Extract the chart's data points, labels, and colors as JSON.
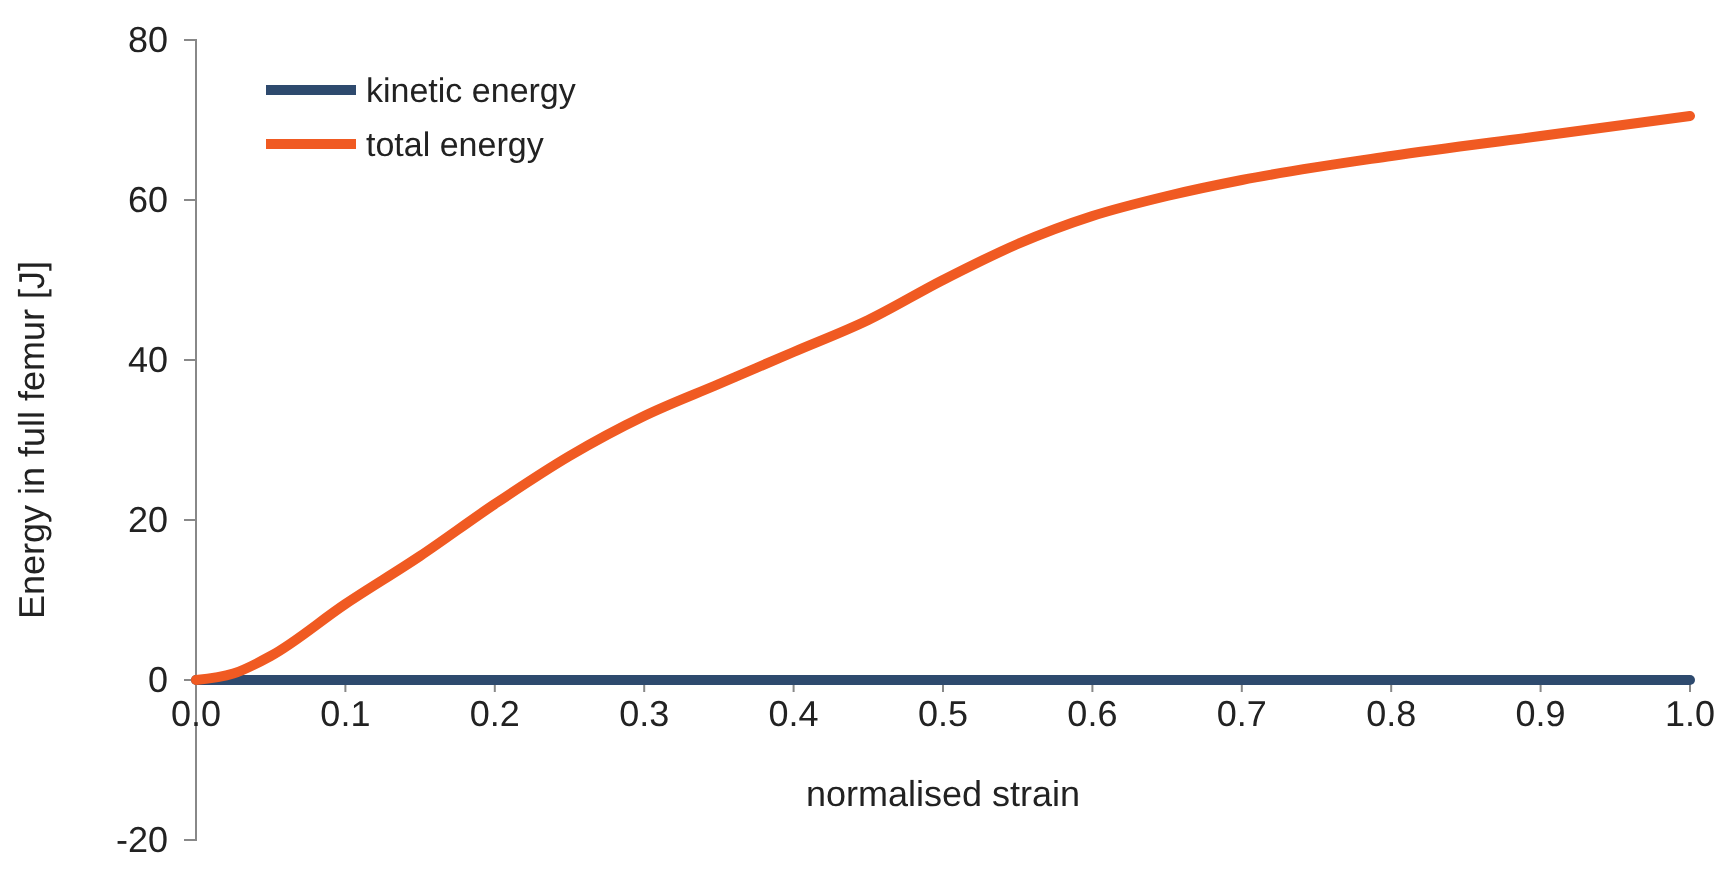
{
  "chart_data": {
    "type": "line",
    "xlabel": "normalised strain",
    "ylabel": "Energy in full femur [J]",
    "xlim": [
      0,
      1
    ],
    "xticks": [
      {
        "value": 0,
        "label": "0.0"
      },
      {
        "value": 0.1,
        "label": "0.1"
      },
      {
        "value": 0.2,
        "label": "0.2"
      },
      {
        "value": 0.3,
        "label": "0.3"
      },
      {
        "value": 0.4,
        "label": "0.4"
      },
      {
        "value": 0.5,
        "label": "0.5"
      },
      {
        "value": 0.6,
        "label": "0.6"
      },
      {
        "value": 0.7,
        "label": "0.7"
      },
      {
        "value": 0.8,
        "label": "0.8"
      },
      {
        "value": 0.9,
        "label": "0.9"
      },
      {
        "value": 1,
        "label": "1.0"
      }
    ],
    "ylim": [
      -20,
      80
    ],
    "yticks": [
      -20,
      0,
      20,
      40,
      60,
      80
    ],
    "grid": false,
    "legend": "top left",
    "marker": "none",
    "line_style": "solid",
    "series": [
      {
        "name": "kinetic energy",
        "color": "#2e4a6e",
        "x": [
          0,
          0.25,
          0.5,
          0.75,
          1
        ],
        "values": [
          0,
          0,
          0,
          0,
          0
        ]
      },
      {
        "name": "total energy",
        "color": "#f05a22",
        "x": [
          0,
          0.025,
          0.05,
          0.1,
          0.15,
          0.2,
          0.25,
          0.3,
          0.35,
          0.4,
          0.45,
          0.5,
          0.55,
          0.6,
          0.65,
          0.7,
          0.8,
          0.9,
          1
        ],
        "values": [
          0,
          0.8,
          3,
          9.5,
          15.5,
          22,
          28,
          33,
          37,
          41,
          45,
          50,
          54.5,
          58,
          60.5,
          62.5,
          65.5,
          68,
          70.5
        ]
      }
    ]
  }
}
